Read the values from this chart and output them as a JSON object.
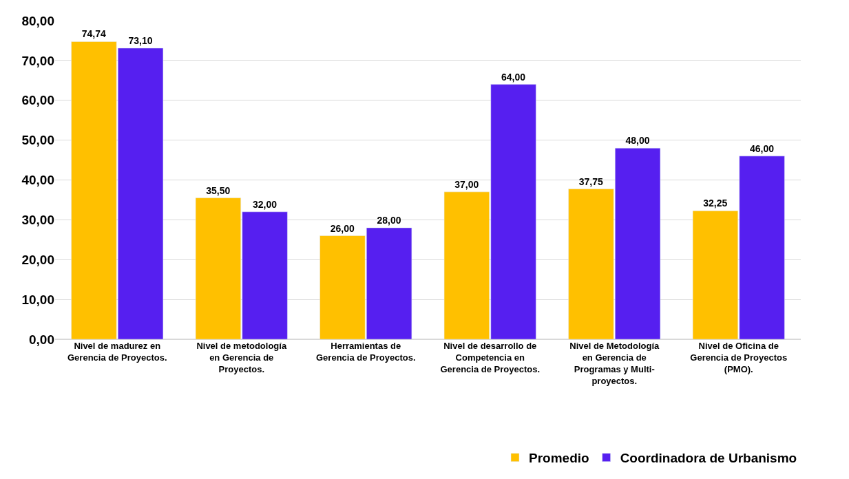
{
  "chart_data": {
    "type": "bar",
    "categories": [
      "Nivel de madurez en\nGerencia de Proyectos.",
      "Nivel de metodología\nen Gerencia de\nProyectos.",
      "Herramientas de\nGerencia de Proyectos.",
      "Nivel de desarrollo de\nCompetencia en\nGerencia de Proyectos.",
      "Nivel de Metodología\nen Gerencia de\nProgramas y Multi-\nproyectos.",
      "Nivel de Oficina de\nGerencia de Proyectos\n(PMO)."
    ],
    "series": [
      {
        "name": "Promedio",
        "color": "#ffc000",
        "values": [
          74.74,
          35.5,
          26.0,
          37.0,
          37.75,
          32.25
        ],
        "value_labels": [
          "74,74",
          "35,50",
          "26,00",
          "37,00",
          "37,75",
          "32,25"
        ]
      },
      {
        "name": "Coordinadora de Urbanismo",
        "color": "#561ff0",
        "values": [
          73.1,
          32.0,
          28.0,
          64.0,
          48.0,
          46.0
        ],
        "value_labels": [
          "73,10",
          "32,00",
          "28,00",
          "64,00",
          "48,00",
          "46,00"
        ]
      }
    ],
    "ylim": [
      0,
      80
    ],
    "yticks": [
      {
        "value": 0,
        "label": "0,00"
      },
      {
        "value": 10,
        "label": "10,00"
      },
      {
        "value": 20,
        "label": "20,00"
      },
      {
        "value": 30,
        "label": "30,00"
      },
      {
        "value": 40,
        "label": "40,00"
      },
      {
        "value": 50,
        "label": "50,00"
      },
      {
        "value": 60,
        "label": "60,00"
      },
      {
        "value": 70,
        "label": "70,00"
      },
      {
        "value": 80,
        "label": "80,00"
      }
    ],
    "grid": "y",
    "legend": "bottom right"
  }
}
